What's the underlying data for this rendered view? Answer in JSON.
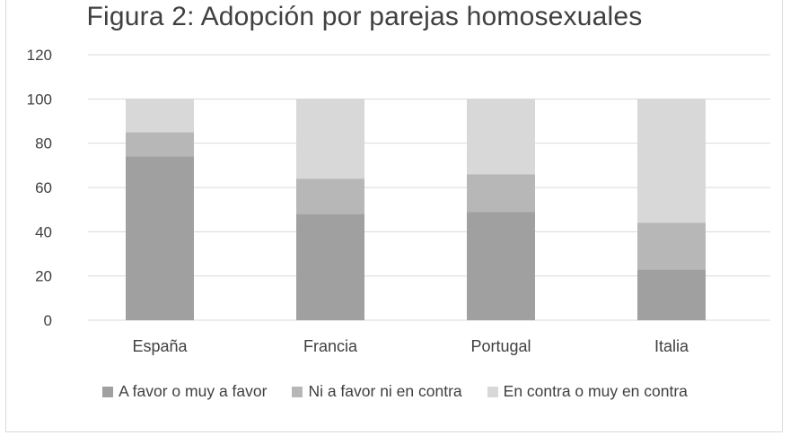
{
  "chart_data": {
    "type": "bar",
    "stacked": true,
    "title": "Figura 2: Adopción por parejas homosexuales",
    "categories": [
      "España",
      "Francia",
      "Portugal",
      "Italia"
    ],
    "series": [
      {
        "name": "A favor o muy a favor",
        "values": [
          74,
          48,
          49,
          23
        ],
        "color": "#a0a0a0"
      },
      {
        "name": "Ni a favor ni en contra",
        "values": [
          11,
          16,
          17,
          21
        ],
        "color": "#b7b7b7"
      },
      {
        "name": "En contra o muy en contra",
        "values": [
          15,
          36,
          34,
          56
        ],
        "color": "#d8d8d8"
      }
    ],
    "y_ticks": [
      "0",
      "20",
      "40",
      "60",
      "80",
      "100",
      "120"
    ],
    "ylim": [
      0,
      120
    ],
    "grid": true,
    "legend_position": "bottom"
  }
}
